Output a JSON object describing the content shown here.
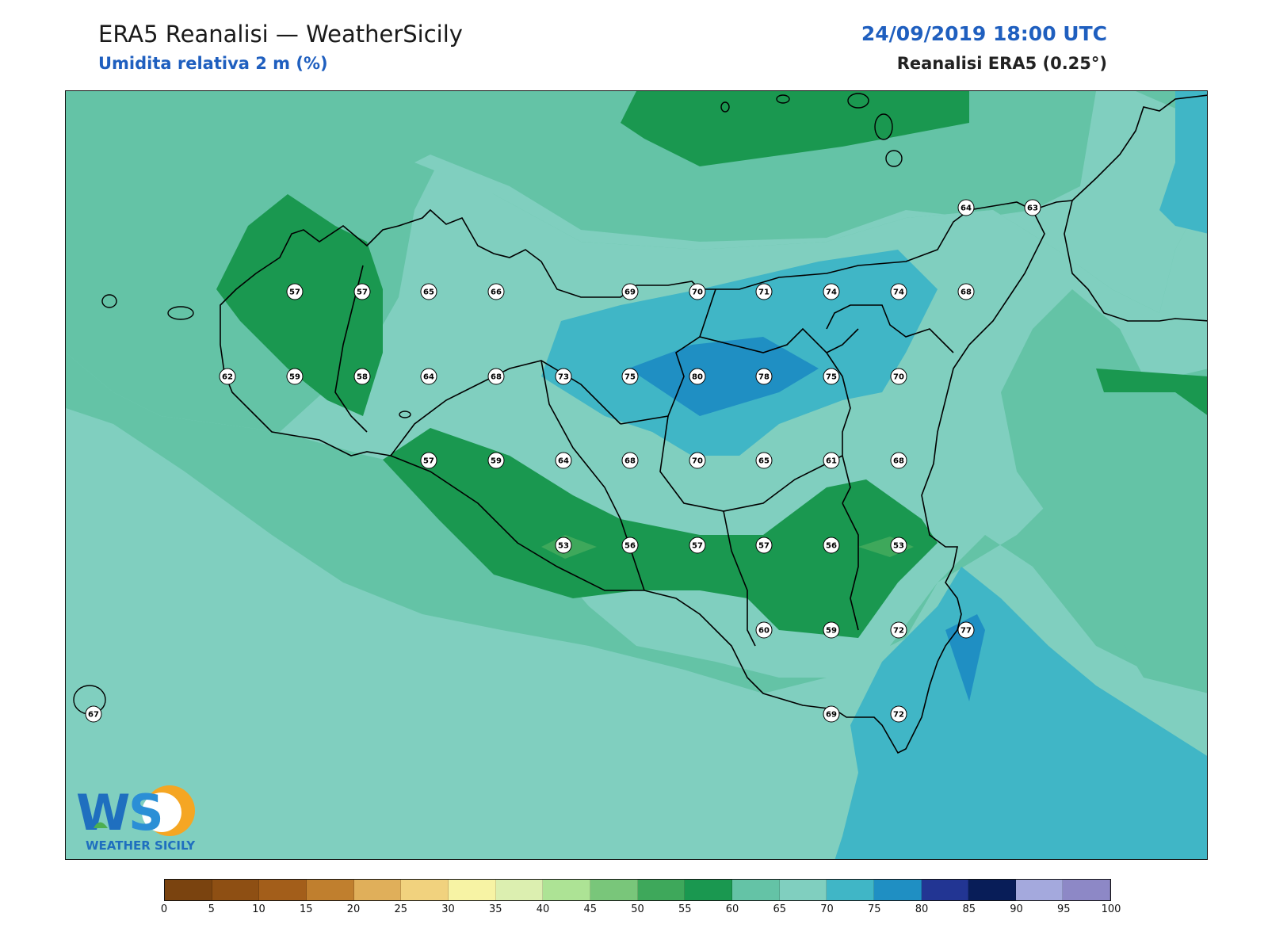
{
  "header": {
    "title": "ERA5 Reanalisi — WeatherSicily",
    "subtitle": "Umidita relativa 2 m (%)",
    "datetime": "24/09/2019 18:00 UTC",
    "source": "Reanalisi ERA5 (0.25°)"
  },
  "logo": {
    "text": "WEATHER SICILY",
    "mark": "WS"
  },
  "colorbar": {
    "ticks": [
      "0",
      "5",
      "10",
      "15",
      "20",
      "25",
      "30",
      "35",
      "40",
      "45",
      "50",
      "55",
      "60",
      "65",
      "70",
      "75",
      "80",
      "85",
      "90",
      "95",
      "100"
    ],
    "colors": [
      "#7a430f",
      "#8e4f13",
      "#a35e1a",
      "#c07f2e",
      "#e0af5a",
      "#f1d27e",
      "#f7f3a4",
      "#dcefb0",
      "#ade395",
      "#79c67a",
      "#3ea85b",
      "#1a9850",
      "#64c3a6",
      "#80cfbf",
      "#40b6c6",
      "#1f8fc3",
      "#223593",
      "#081d58",
      "#a4a9dd",
      "#8d88c6"
    ]
  },
  "map": {
    "field": "relative humidity 2 m",
    "stations": [
      {
        "v": "64"
      },
      {
        "v": "63"
      },
      {
        "v": "57"
      },
      {
        "v": "57"
      },
      {
        "v": "65"
      },
      {
        "v": "66"
      },
      {
        "v": "69"
      },
      {
        "v": "70"
      },
      {
        "v": "71"
      },
      {
        "v": "74"
      },
      {
        "v": "74"
      },
      {
        "v": "68"
      },
      {
        "v": "62"
      },
      {
        "v": "59"
      },
      {
        "v": "58"
      },
      {
        "v": "64"
      },
      {
        "v": "68"
      },
      {
        "v": "73"
      },
      {
        "v": "75"
      },
      {
        "v": "80"
      },
      {
        "v": "78"
      },
      {
        "v": "75"
      },
      {
        "v": "70"
      },
      {
        "v": "57"
      },
      {
        "v": "59"
      },
      {
        "v": "64"
      },
      {
        "v": "68"
      },
      {
        "v": "70"
      },
      {
        "v": "65"
      },
      {
        "v": "61"
      },
      {
        "v": "68"
      },
      {
        "v": "53"
      },
      {
        "v": "56"
      },
      {
        "v": "57"
      },
      {
        "v": "57"
      },
      {
        "v": "56"
      },
      {
        "v": "53"
      },
      {
        "v": "60"
      },
      {
        "v": "59"
      },
      {
        "v": "72"
      },
      {
        "v": "77"
      },
      {
        "v": "67"
      },
      {
        "v": "69"
      },
      {
        "v": "72"
      }
    ]
  }
}
